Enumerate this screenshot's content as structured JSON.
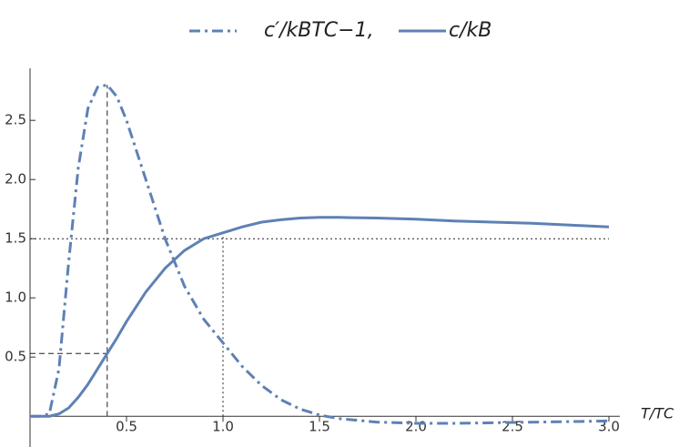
{
  "chart_data": {
    "type": "line",
    "x_label": "T/TC",
    "x": [
      0,
      0.05,
      0.1,
      0.15,
      0.2,
      0.25,
      0.3,
      0.35,
      0.4,
      0.45,
      0.5,
      0.6,
      0.7,
      0.8,
      0.9,
      1.0,
      1.1,
      1.2,
      1.3,
      1.4,
      1.5,
      1.6,
      1.8,
      2.0,
      2.2,
      2.4,
      2.6,
      2.8,
      3.0
    ],
    "series": [
      {
        "name": "c′/kBTC−1,",
        "color": "#5e81b5",
        "dash": "dashdot",
        "values": [
          0,
          0,
          0.02,
          0.4,
          1.3,
          2.1,
          2.6,
          2.78,
          2.8,
          2.7,
          2.5,
          2.0,
          1.5,
          1.1,
          0.82,
          0.62,
          0.42,
          0.26,
          0.14,
          0.06,
          0.01,
          -0.02,
          -0.05,
          -0.06,
          -0.06,
          -0.055,
          -0.05,
          -0.045,
          -0.04
        ]
      },
      {
        "name": "c/kB",
        "color": "#5e81b5",
        "dash": "solid",
        "values": [
          0,
          0,
          0,
          0.02,
          0.07,
          0.16,
          0.27,
          0.4,
          0.53,
          0.66,
          0.8,
          1.05,
          1.25,
          1.4,
          1.5,
          1.55,
          1.6,
          1.64,
          1.66,
          1.675,
          1.68,
          1.68,
          1.675,
          1.665,
          1.65,
          1.64,
          1.63,
          1.615,
          1.6
        ]
      }
    ],
    "guides": [
      {
        "x": [
          0.4,
          0.4
        ],
        "y": [
          0,
          2.8
        ],
        "dash": "dashed"
      },
      {
        "x": [
          0,
          0.4
        ],
        "y": [
          0.53,
          0.53
        ],
        "dash": "dashed"
      },
      {
        "x": [
          0,
          3.0
        ],
        "y": [
          1.5,
          1.5
        ],
        "dash": "dotted"
      },
      {
        "x": [
          1.0,
          1.0
        ],
        "y": [
          0,
          1.55
        ],
        "dash": "dotted"
      }
    ],
    "xlim": [
      0,
      3.0
    ],
    "ylim": [
      -0.26,
      2.94
    ],
    "xticks": [
      0.5,
      {
        "value": 1,
        "label": "1.0"
      },
      1.5,
      {
        "value": 2,
        "label": "2.0"
      },
      2.5,
      {
        "value": 3,
        "label": "3.0"
      }
    ],
    "yticks": [
      0.5,
      {
        "value": 1,
        "label": "1.0"
      },
      1.5,
      {
        "value": 2,
        "label": "2.0"
      },
      2.5
    ],
    "legend": "top"
  }
}
